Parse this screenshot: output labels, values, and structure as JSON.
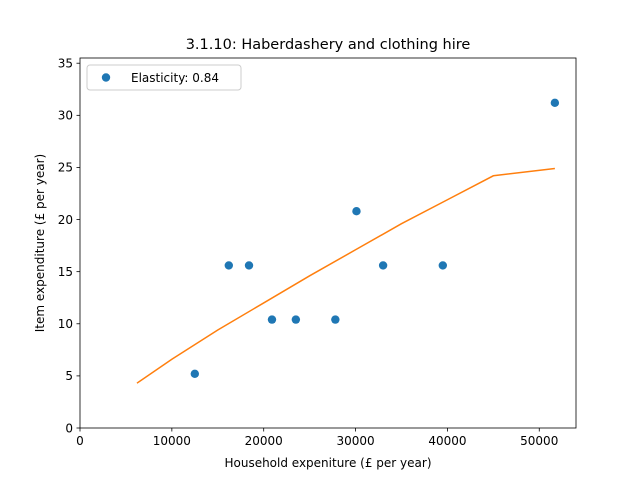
{
  "chart_data": {
    "type": "scatter",
    "title": "3.1.10: Haberdashery and clothing hire",
    "xlabel": "Household expeniture (£ per year)",
    "ylabel": "Item expenditure (£ per year)",
    "xlim": [
      0,
      54000
    ],
    "ylim": [
      0,
      35.5
    ],
    "xticks": [
      0,
      10000,
      20000,
      30000,
      40000,
      50000
    ],
    "yticks": [
      0,
      5,
      10,
      15,
      20,
      25,
      30,
      35
    ],
    "grid": false,
    "legend": {
      "placement": "top-left",
      "entries": [
        "Elasticity: 0.84"
      ]
    },
    "series": [
      {
        "name": "Elasticity: 0.84",
        "kind": "scatter",
        "color": "#1f77b4",
        "x": [
          12500,
          16200,
          18400,
          20900,
          23500,
          27800,
          30100,
          33000,
          39500,
          51700
        ],
        "y": [
          5.2,
          15.6,
          15.6,
          10.4,
          10.4,
          10.4,
          20.8,
          15.6,
          15.6,
          31.2
        ]
      },
      {
        "kind": "line",
        "color": "#ff7f0e",
        "x": [
          6200,
          10000,
          15000,
          20000,
          25000,
          30000,
          35000,
          40000,
          45000,
          51700
        ],
        "y": [
          4.3,
          6.6,
          9.4,
          12.0,
          14.6,
          17.1,
          19.6,
          21.9,
          24.2,
          24.9
        ]
      }
    ]
  }
}
